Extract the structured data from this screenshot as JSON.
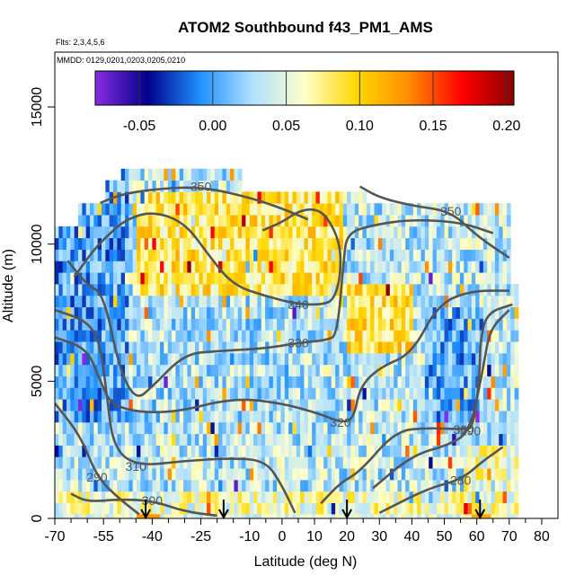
{
  "chart_data": {
    "type": "heatmap",
    "title": "ATOM2 Southbound f43_PM1_AMS",
    "flights_note": "Flts: 2,3,4,5,6",
    "dates_note": "MMDD: 0129,0201,0203,0205,0210",
    "xlabel": "Latitude (deg N)",
    "ylabel": "Altitude (m)",
    "xlim": [
      -70,
      85
    ],
    "ylim": [
      0,
      17000
    ],
    "x_ticks": [
      -70,
      -55,
      -40,
      -25,
      -10,
      0,
      10,
      20,
      30,
      40,
      50,
      60,
      70,
      80
    ],
    "y_ticks": [
      0,
      5000,
      10000,
      15000
    ],
    "colorbar": {
      "range": [
        -0.08,
        0.205
      ],
      "ticks": [
        -0.05,
        0.0,
        0.05,
        0.1,
        0.15,
        0.2
      ],
      "tick_labels": [
        "-0.05",
        "0.00",
        "0.05",
        "0.10",
        "0.15",
        "0.20"
      ],
      "colors": [
        "#8a2be2",
        "#00008b",
        "#1e90ff",
        "#b0e0ff",
        "#ffffcc",
        "#ffd700",
        "#ff8c00",
        "#ff0000",
        "#8b0000"
      ]
    },
    "contours": [
      {
        "label": "280",
        "points": [
          [
            30,
            200
          ],
          [
            45,
            1100
          ],
          [
            55,
            1400
          ],
          [
            62,
            2100
          ],
          [
            68,
            2600
          ]
        ]
      },
      {
        "label": "290",
        "points": [
          [
            -70,
            4200
          ],
          [
            -62,
            3000
          ],
          [
            -57,
            1500
          ],
          [
            -50,
            700
          ],
          [
            -44,
            150
          ]
        ]
      },
      {
        "label": "290",
        "points": [
          [
            28,
            1100
          ],
          [
            40,
            2300
          ],
          [
            52,
            2700
          ],
          [
            58,
            3200
          ],
          [
            62,
            5500
          ],
          [
            64,
            6900
          ],
          [
            70,
            7600
          ]
        ]
      },
      {
        "label": "300",
        "points": [
          [
            -65,
            900
          ],
          [
            -60,
            600
          ],
          [
            -50,
            700
          ],
          [
            -40,
            650
          ],
          [
            -30,
            250
          ],
          [
            -20,
            100
          ]
        ]
      },
      {
        "label": "300",
        "points": [
          [
            12,
            550
          ],
          [
            18,
            1300
          ],
          [
            24,
            1700
          ],
          [
            35,
            3200
          ],
          [
            45,
            3300
          ],
          [
            56,
            3250
          ],
          [
            59,
            3300
          ],
          [
            61,
            5400
          ],
          [
            61,
            6400
          ],
          [
            63,
            7500
          ],
          [
            71,
            7800
          ]
        ]
      },
      {
        "label": "310",
        "points": [
          [
            -70,
            7600
          ],
          [
            -60,
            7200
          ],
          [
            -56,
            6400
          ],
          [
            -54,
            4500
          ],
          [
            -52,
            2600
          ],
          [
            -45,
            1900
          ],
          [
            -30,
            2100
          ],
          [
            -15,
            2200
          ],
          [
            -5,
            2100
          ],
          [
            0,
            1200
          ],
          [
            4,
            200
          ]
        ]
      },
      {
        "label": "320",
        "points": [
          [
            -70,
            6600
          ],
          [
            -60,
            6200
          ],
          [
            -56,
            5000
          ],
          [
            -52,
            4000
          ],
          [
            -35,
            3800
          ],
          [
            -15,
            4400
          ],
          [
            0,
            4200
          ],
          [
            12,
            3800
          ],
          [
            18,
            3500
          ],
          [
            22,
            3600
          ],
          [
            24,
            4800
          ],
          [
            30,
            5500
          ],
          [
            40,
            6000
          ],
          [
            48,
            7800
          ],
          [
            58,
            8300
          ],
          [
            70,
            8300
          ]
        ]
      },
      {
        "label": "330",
        "points": [
          [
            -66,
            9400
          ],
          [
            -60,
            8500
          ],
          [
            -55,
            8200
          ],
          [
            -50,
            5400
          ],
          [
            -45,
            4300
          ],
          [
            -40,
            4800
          ],
          [
            -30,
            6000
          ],
          [
            -20,
            6100
          ],
          [
            -5,
            6200
          ],
          [
            5,
            6400
          ],
          [
            14,
            6500
          ],
          [
            17,
            6700
          ],
          [
            19,
            9400
          ],
          [
            20,
            10400
          ],
          [
            28,
            10700
          ],
          [
            40,
            10900
          ],
          [
            55,
            10800
          ],
          [
            65,
            10400
          ]
        ]
      },
      {
        "label": "340",
        "points": [
          [
            -64,
            8800
          ],
          [
            -58,
            9800
          ],
          [
            -53,
            10400
          ],
          [
            -48,
            10900
          ],
          [
            -40,
            11200
          ],
          [
            -30,
            10800
          ],
          [
            -22,
            9500
          ],
          [
            -15,
            8500
          ],
          [
            -5,
            8100
          ],
          [
            5,
            7800
          ],
          [
            13,
            7800
          ],
          [
            16,
            8000
          ],
          [
            18,
            8800
          ],
          [
            18,
            10000
          ],
          [
            14,
            11000
          ],
          [
            10,
            11300
          ],
          [
            5,
            11200
          ],
          [
            0,
            10800
          ],
          [
            -6,
            10500
          ]
        ]
      },
      {
        "label": "350",
        "points": [
          [
            -56,
            11500
          ],
          [
            -50,
            11800
          ],
          [
            -40,
            12000
          ],
          [
            -25,
            12100
          ],
          [
            -10,
            11700
          ],
          [
            0,
            11300
          ],
          [
            8,
            10900
          ]
        ]
      },
      {
        "label": "350",
        "points": [
          [
            24,
            12100
          ],
          [
            30,
            11700
          ],
          [
            40,
            11400
          ],
          [
            52,
            11200
          ],
          [
            60,
            10300
          ],
          [
            70,
            9500
          ]
        ]
      }
    ],
    "arrow_latitudes": [
      -42,
      -18,
      20,
      61
    ]
  }
}
